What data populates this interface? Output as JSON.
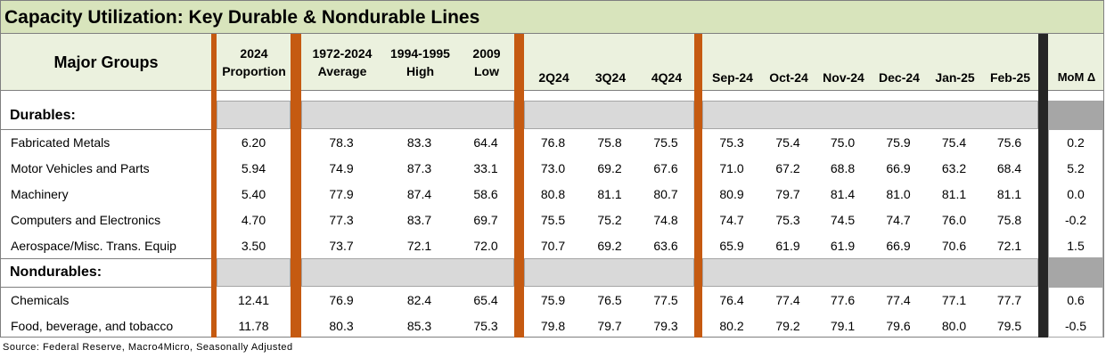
{
  "title": "Capacity Utilization: Key Durable & Nondurable Lines",
  "columns": {
    "major_groups": "Major Groups",
    "proportion": [
      "2024",
      "Proportion"
    ],
    "average": [
      "1972-2024",
      "Average"
    ],
    "high": [
      "1994-1995",
      "High"
    ],
    "low": [
      "2009",
      "Low"
    ],
    "q2": "2Q24",
    "q3": "3Q24",
    "q4": "4Q24",
    "sep": "Sep-24",
    "oct": "Oct-24",
    "nov": "Nov-24",
    "dec": "Dec-24",
    "jan": "Jan-25",
    "feb": "Feb-25",
    "mom": "MoM Δ"
  },
  "sections": [
    {
      "label": "Durables:",
      "rows": [
        {
          "name": "Fabricated Metals",
          "values": [
            "6.20",
            "78.3",
            "83.3",
            "64.4",
            "76.8",
            "75.8",
            "75.5",
            "75.3",
            "75.4",
            "75.0",
            "75.9",
            "75.4",
            "75.6",
            "0.2"
          ]
        },
        {
          "name": "Motor Vehicles and Parts",
          "values": [
            "5.94",
            "74.9",
            "87.3",
            "33.1",
            "73.0",
            "69.2",
            "67.6",
            "71.0",
            "67.2",
            "68.8",
            "66.9",
            "63.2",
            "68.4",
            "5.2"
          ]
        },
        {
          "name": "Machinery",
          "values": [
            "5.40",
            "77.9",
            "87.4",
            "58.6",
            "80.8",
            "81.1",
            "80.7",
            "80.9",
            "79.7",
            "81.4",
            "81.0",
            "81.1",
            "81.1",
            "0.0"
          ]
        },
        {
          "name": "Computers and Electronics",
          "values": [
            "4.70",
            "77.3",
            "83.7",
            "69.7",
            "75.5",
            "75.2",
            "74.8",
            "74.7",
            "75.3",
            "74.5",
            "74.7",
            "76.0",
            "75.8",
            "-0.2"
          ]
        },
        {
          "name": "Aerospace/Misc. Trans. Equip",
          "values": [
            "3.50",
            "73.7",
            "72.1",
            "72.0",
            "70.7",
            "69.2",
            "63.6",
            "65.9",
            "61.9",
            "61.9",
            "66.9",
            "70.6",
            "72.1",
            "1.5"
          ]
        }
      ]
    },
    {
      "label": "Nondurables:",
      "rows": [
        {
          "name": "Chemicals",
          "values": [
            "12.41",
            "76.9",
            "82.4",
            "65.4",
            "75.9",
            "76.5",
            "77.5",
            "76.4",
            "77.4",
            "77.6",
            "77.4",
            "77.1",
            "77.7",
            "0.6"
          ]
        },
        {
          "name": "Food, beverage, and tobacco",
          "values": [
            "11.78",
            "80.3",
            "85.3",
            "75.3",
            "79.8",
            "79.7",
            "79.3",
            "80.2",
            "79.2",
            "79.1",
            "79.6",
            "80.0",
            "79.5",
            "-0.5"
          ]
        }
      ]
    }
  ],
  "source": "Source: Federal Reserve, Macro4Micro, Seasonally Adjusted",
  "colors": {
    "title_bg": "#d8e4bc",
    "header_bg": "#ebf1de",
    "separator": "#c55a11",
    "separator_dark": "#262626",
    "band": "#d9d9d9",
    "band_mom": "#a6a6a6"
  }
}
